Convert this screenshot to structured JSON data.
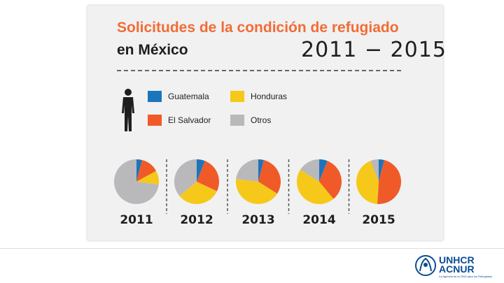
{
  "header": {
    "title": "Solicitudes de la condición de refugiado",
    "subtitle": "en México",
    "years_range": "2011 − 2015"
  },
  "legend": [
    {
      "label": "Guatemala",
      "color": "#1b75bb"
    },
    {
      "label": "Honduras",
      "color": "#f6c81a"
    },
    {
      "label": "El Salvador",
      "color": "#f05a28"
    },
    {
      "label": "Otros",
      "color": "#b9b8bb"
    }
  ],
  "chart_data": {
    "type": "pie",
    "series_names": [
      "Guatemala",
      "El Salvador",
      "Honduras",
      "Otros"
    ],
    "colors": [
      "#1b75bb",
      "#f05a28",
      "#f6c81a",
      "#b9b8bb"
    ],
    "pies": [
      {
        "label": "2011",
        "values": [
          4,
          13,
          10,
          73
        ]
      },
      {
        "label": "2012",
        "values": [
          6,
          26,
          32,
          36
        ]
      },
      {
        "label": "2013",
        "values": [
          4,
          30,
          43,
          23
        ]
      },
      {
        "label": "2014",
        "values": [
          6,
          33,
          45,
          16
        ]
      },
      {
        "label": "2015",
        "values": [
          4,
          47,
          43,
          6
        ]
      }
    ]
  },
  "footer": {
    "logo_line1": "UNHCR",
    "logo_line2": "ACNUR",
    "logo_tagline": "La Agencia de la ONU para los Refugiados"
  }
}
